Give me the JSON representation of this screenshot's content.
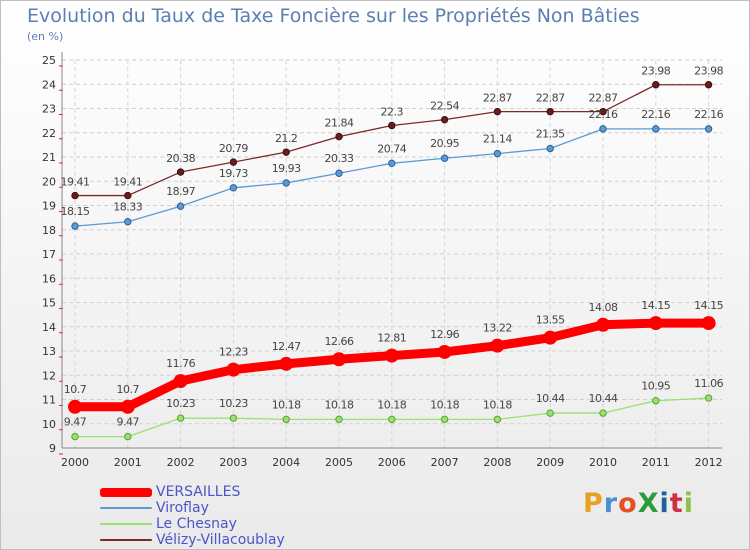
{
  "chart_data": {
    "type": "line",
    "title": "Evolution du Taux de Taxe Foncière sur les Propriétés Non Bâties",
    "ylabel": "(en %)",
    "xlabel": "",
    "categories": [
      "2000",
      "2001",
      "2002",
      "2003",
      "2004",
      "2005",
      "2006",
      "2007",
      "2008",
      "2009",
      "2010",
      "2011",
      "2012"
    ],
    "ylim": [
      9,
      25
    ],
    "yticks": [
      "9",
      "10",
      "11",
      "12",
      "13",
      "14",
      "15",
      "16",
      "17",
      "18",
      "19",
      "20",
      "21",
      "22",
      "23",
      "24",
      "25"
    ],
    "series": [
      {
        "name": "VERSAILLES",
        "color": "#ff0000",
        "values": [
          10.7,
          10.7,
          11.76,
          12.23,
          12.47,
          12.66,
          12.81,
          12.96,
          13.22,
          13.55,
          14.08,
          14.15,
          14.15
        ],
        "labels": [
          "10.7",
          "10.7",
          "11.76",
          "12.23",
          "12.47",
          "12.66",
          "12.81",
          "12.96",
          "13.22",
          "13.55",
          "14.08",
          "14.15",
          "14.15"
        ]
      },
      {
        "name": "Viroflay",
        "color": "#5b9bd5",
        "values": [
          18.15,
          18.33,
          18.97,
          19.73,
          19.93,
          20.33,
          20.74,
          20.95,
          21.14,
          21.35,
          22.16,
          22.16,
          22.16
        ],
        "labels": [
          "18.15",
          "18.33",
          "18.97",
          "19.73",
          "19.93",
          "20.33",
          "20.74",
          "20.95",
          "21.14",
          "21.35",
          "22.16",
          "22.16",
          "22.16"
        ]
      },
      {
        "name": "Le Chesnay",
        "color": "#99e26f",
        "values": [
          9.47,
          9.47,
          10.23,
          10.23,
          10.18,
          10.18,
          10.18,
          10.18,
          10.18,
          10.44,
          10.44,
          10.95,
          11.06
        ],
        "labels": [
          "9.47",
          "9.47",
          "10.23",
          "10.23",
          "10.18",
          "10.18",
          "10.18",
          "10.18",
          "10.18",
          "10.44",
          "10.44",
          "10.95",
          "11.06"
        ]
      },
      {
        "name": "Vélizy-Villacoublay",
        "color": "#7b2a2a",
        "values": [
          19.41,
          19.41,
          20.38,
          20.79,
          21.2,
          21.84,
          22.3,
          22.54,
          22.87,
          22.87,
          22.87,
          23.98,
          23.98
        ],
        "labels": [
          "19.41",
          "19.41",
          "20.38",
          "20.79",
          "21.2",
          "21.84",
          "22.3",
          "22.54",
          "22.87",
          "22.87",
          "22.87",
          "23.98",
          "23.98"
        ]
      }
    ]
  },
  "logo": {
    "text": "ProXiti",
    "colors": [
      "#e8a020",
      "#4a90d0",
      "#e85020",
      "#2a9d3a",
      "#1e5fa0",
      "#d03040",
      "#8bc34a"
    ]
  }
}
